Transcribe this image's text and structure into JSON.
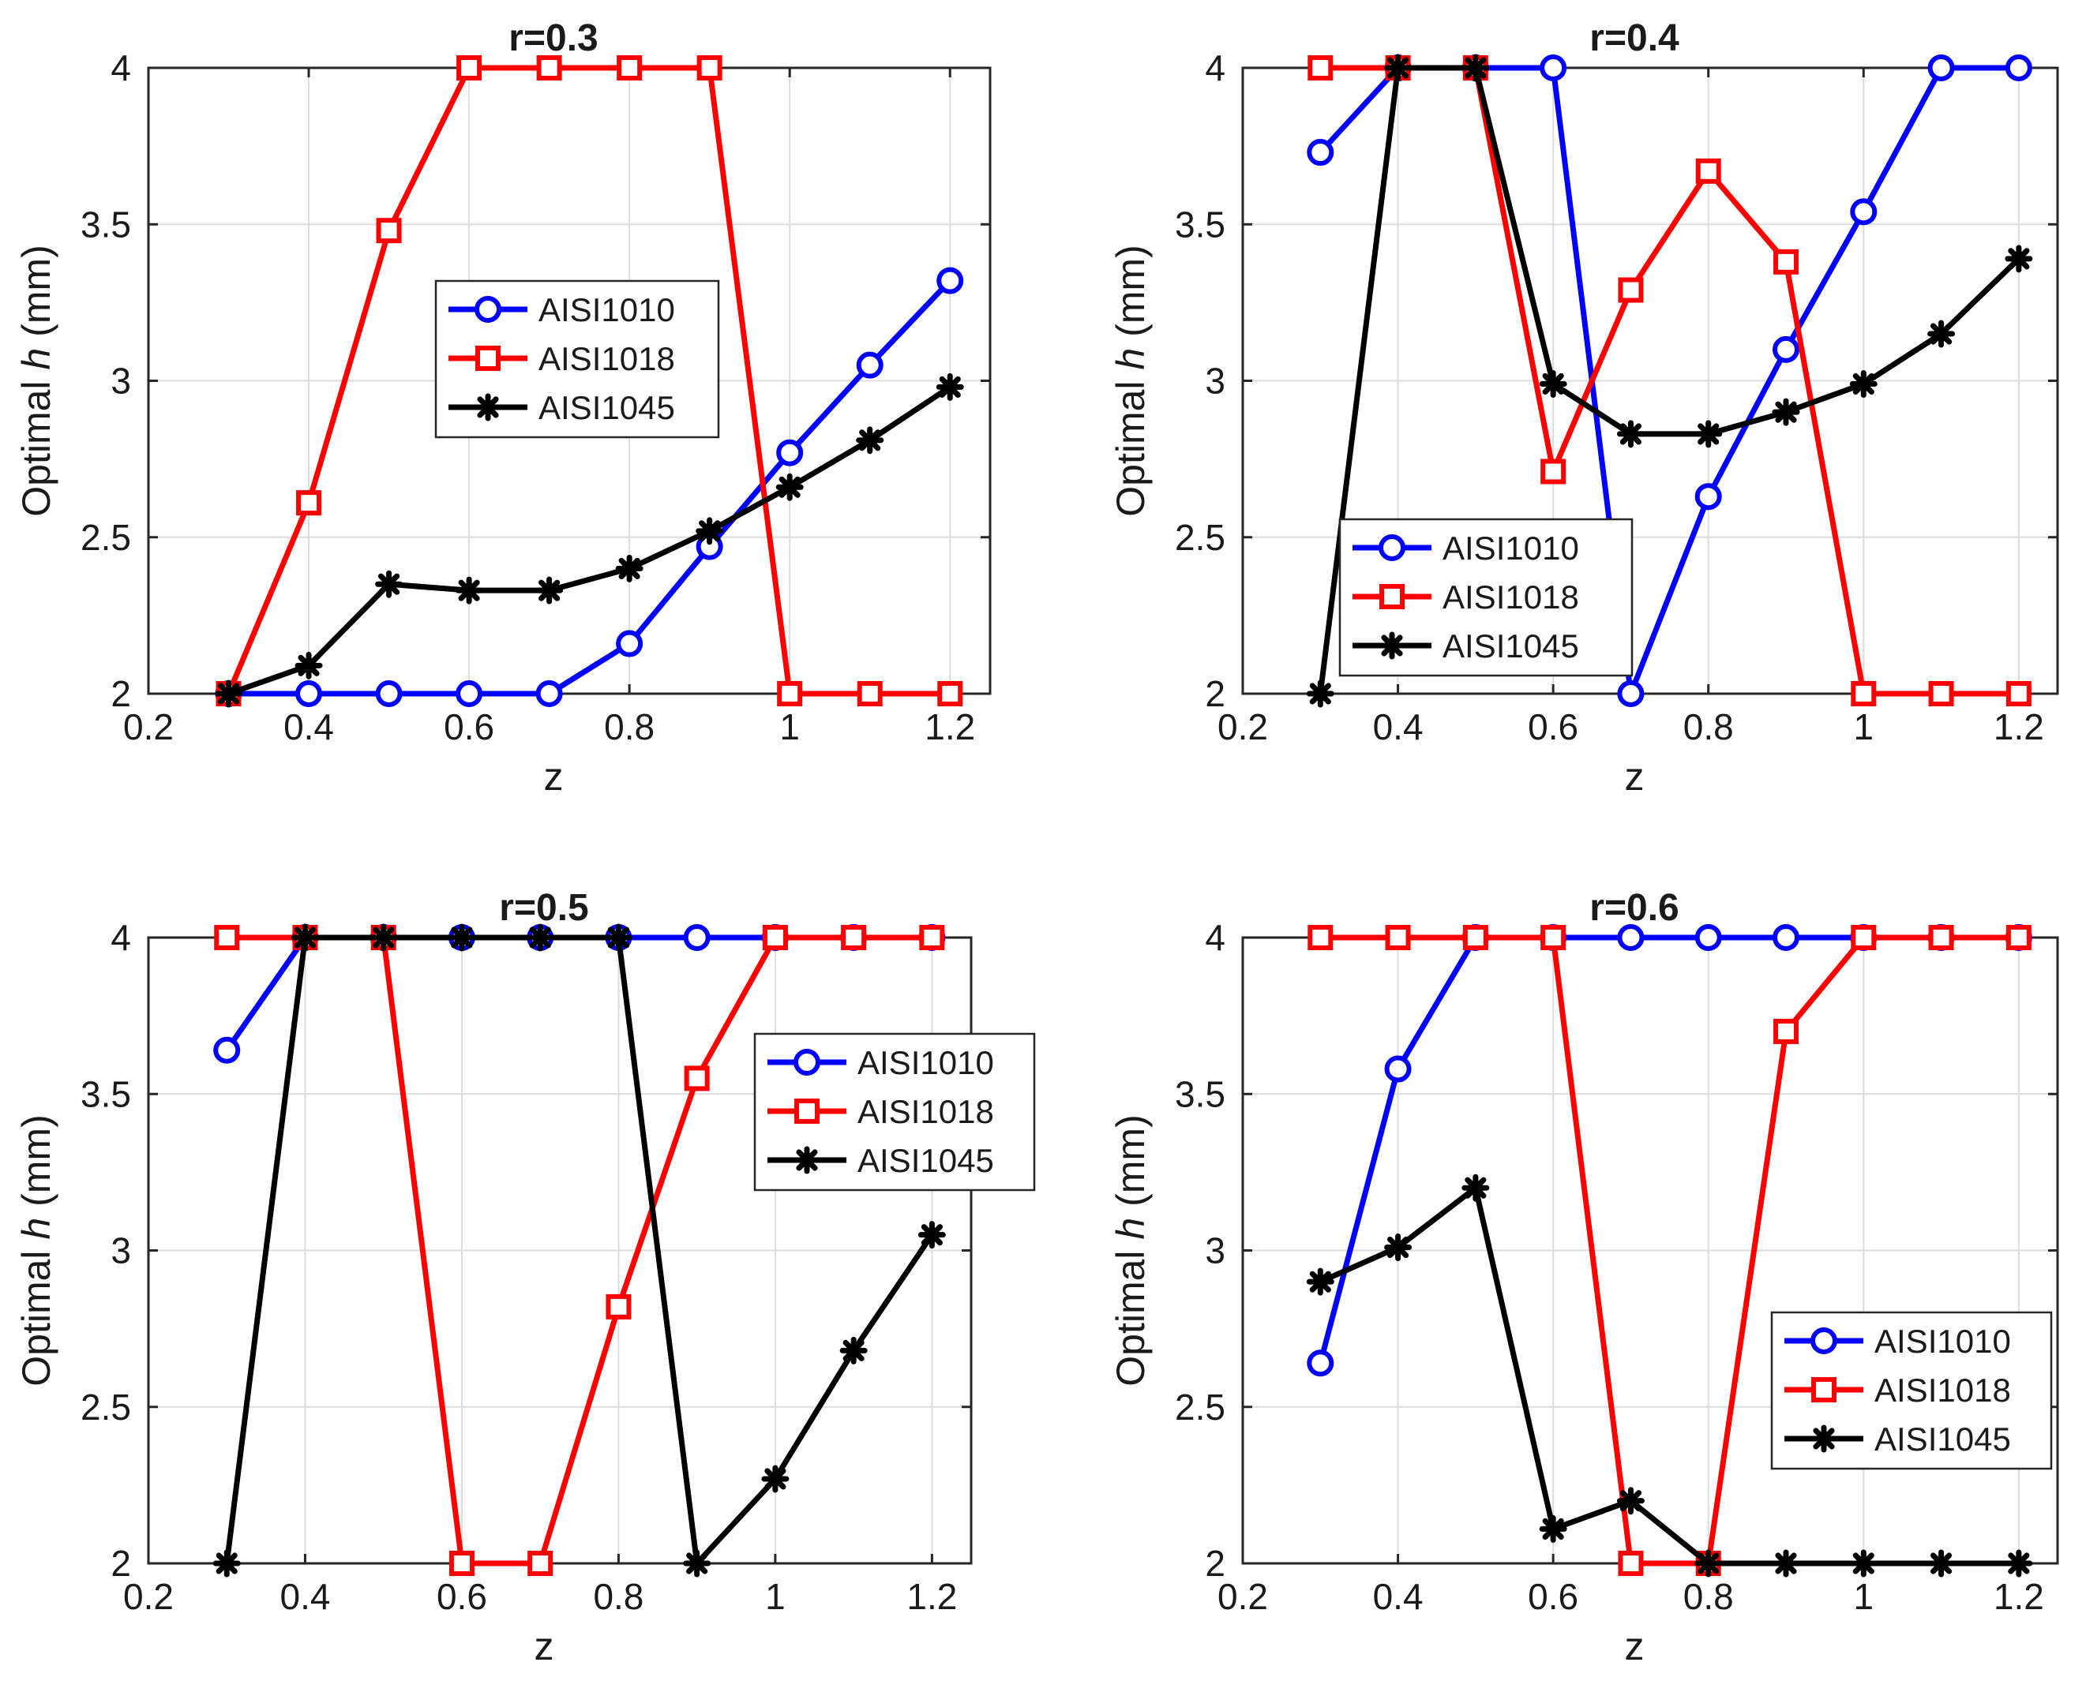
{
  "chart_data": [
    {
      "type": "line",
      "title": "r=0.3",
      "xlabel": "z",
      "ylabel_prefix": "Optimal",
      "ylabel_var": "h",
      "ylabel_unit": "(mm)",
      "xlim": [
        0.2,
        1.25
      ],
      "ylim": [
        2,
        4
      ],
      "xticks": [
        0.2,
        0.4,
        0.6,
        0.8,
        1,
        1.2
      ],
      "xtick_labels": [
        "0.2",
        "0.4",
        "0.6",
        "0.8",
        "1",
        "1.2"
      ],
      "yticks": [
        2,
        2.5,
        3,
        3.5,
        4
      ],
      "ytick_labels": [
        "2",
        "2.5",
        "3",
        "3.5",
        "4"
      ],
      "grid": true,
      "legend_position": "center",
      "x": [
        0.3,
        0.4,
        0.5,
        0.6,
        0.7,
        0.8,
        0.9,
        1.0,
        1.1,
        1.2
      ],
      "series": [
        {
          "name": "AISI1010",
          "color": "#0000ff",
          "marker": "circle",
          "values": [
            2,
            2,
            2,
            2,
            2,
            2.16,
            2.47,
            2.77,
            3.05,
            3.32
          ]
        },
        {
          "name": "AISI1018",
          "color": "#ff0000",
          "marker": "square",
          "values": [
            2,
            2.61,
            3.48,
            4,
            4,
            4,
            4,
            2,
            2,
            2
          ]
        },
        {
          "name": "AISI1045",
          "color": "#000000",
          "marker": "star",
          "values": [
            2,
            2.09,
            2.35,
            2.33,
            2.33,
            2.4,
            2.52,
            2.66,
            2.81,
            2.98
          ]
        }
      ]
    },
    {
      "type": "line",
      "title": "r=0.4",
      "xlabel": "z",
      "ylabel_prefix": "Optimal",
      "ylabel_var": "h",
      "ylabel_unit": "(mm)",
      "xlim": [
        0.2,
        1.25
      ],
      "ylim": [
        2,
        4
      ],
      "xticks": [
        0.2,
        0.4,
        0.6,
        0.8,
        1,
        1.2
      ],
      "xtick_labels": [
        "0.2",
        "0.4",
        "0.6",
        "0.8",
        "1",
        "1.2"
      ],
      "yticks": [
        2,
        2.5,
        3,
        3.5,
        4
      ],
      "ytick_labels": [
        "2",
        "2.5",
        "3",
        "3.5",
        "4"
      ],
      "grid": true,
      "legend_position": "bottom-left",
      "x": [
        0.3,
        0.4,
        0.5,
        0.6,
        0.7,
        0.8,
        0.9,
        1.0,
        1.1,
        1.2
      ],
      "series": [
        {
          "name": "AISI1010",
          "color": "#0000ff",
          "marker": "circle",
          "values": [
            3.73,
            4,
            4,
            4,
            2,
            2.63,
            3.1,
            3.54,
            4,
            4
          ]
        },
        {
          "name": "AISI1018",
          "color": "#ff0000",
          "marker": "square",
          "values": [
            4,
            4,
            4,
            2.71,
            3.29,
            3.67,
            3.38,
            2,
            2,
            2
          ]
        },
        {
          "name": "AISI1045",
          "color": "#000000",
          "marker": "star",
          "values": [
            2,
            4,
            4,
            2.99,
            2.83,
            2.83,
            2.9,
            2.99,
            3.15,
            3.39
          ]
        }
      ]
    },
    {
      "type": "line",
      "title": "r=0.5",
      "xlabel": "z",
      "ylabel_prefix": "Optimal",
      "ylabel_var": "h",
      "ylabel_unit": "(mm)",
      "xlim": [
        0.2,
        1.25
      ],
      "ylim": [
        2,
        4
      ],
      "xticks": [
        0.2,
        0.4,
        0.6,
        0.8,
        1,
        1.2
      ],
      "xtick_labels": [
        "0.2",
        "0.4",
        "0.6",
        "0.8",
        "1",
        "1.2"
      ],
      "yticks": [
        2,
        2.5,
        3,
        3.5,
        4
      ],
      "ytick_labels": [
        "2",
        "2.5",
        "3",
        "3.5",
        "4"
      ],
      "grid": true,
      "legend_position": "top-right",
      "x": [
        0.3,
        0.4,
        0.5,
        0.6,
        0.7,
        0.8,
        0.9,
        1.0,
        1.1,
        1.2
      ],
      "series": [
        {
          "name": "AISI1010",
          "color": "#0000ff",
          "marker": "circle",
          "values": [
            3.64,
            4,
            4,
            4,
            4,
            4,
            4,
            4,
            4,
            4
          ]
        },
        {
          "name": "AISI1018",
          "color": "#ff0000",
          "marker": "square",
          "values": [
            4,
            4,
            4,
            2,
            2,
            2.82,
            3.55,
            4,
            4,
            4
          ]
        },
        {
          "name": "AISI1045",
          "color": "#000000",
          "marker": "star",
          "values": [
            2,
            4,
            4,
            4,
            4,
            4,
            2,
            2.27,
            2.68,
            3.05
          ]
        }
      ]
    },
    {
      "type": "line",
      "title": "r=0.6",
      "xlabel": "z",
      "ylabel_prefix": "Optimal",
      "ylabel_var": "h",
      "ylabel_unit": "(mm)",
      "xlim": [
        0.2,
        1.25
      ],
      "ylim": [
        2,
        4
      ],
      "xticks": [
        0.2,
        0.4,
        0.6,
        0.8,
        1,
        1.2
      ],
      "xtick_labels": [
        "0.2",
        "0.4",
        "0.6",
        "0.8",
        "1",
        "1.2"
      ],
      "yticks": [
        2,
        2.5,
        3,
        3.5,
        4
      ],
      "ytick_labels": [
        "2",
        "2.5",
        "3",
        "3.5",
        "4"
      ],
      "grid": true,
      "legend_position": "bottom-right",
      "x": [
        0.3,
        0.4,
        0.5,
        0.6,
        0.7,
        0.8,
        0.9,
        1.0,
        1.1,
        1.2
      ],
      "series": [
        {
          "name": "AISI1010",
          "color": "#0000ff",
          "marker": "circle",
          "values": [
            2.64,
            3.58,
            4,
            4,
            4,
            4,
            4,
            4,
            4,
            4
          ]
        },
        {
          "name": "AISI1018",
          "color": "#ff0000",
          "marker": "square",
          "values": [
            4,
            4,
            4,
            4,
            2,
            2,
            3.7,
            4,
            4,
            4
          ]
        },
        {
          "name": "AISI1045",
          "color": "#000000",
          "marker": "star",
          "values": [
            2.9,
            3.01,
            3.2,
            2.11,
            2.2,
            2,
            2,
            2,
            2,
            2
          ]
        }
      ]
    }
  ]
}
